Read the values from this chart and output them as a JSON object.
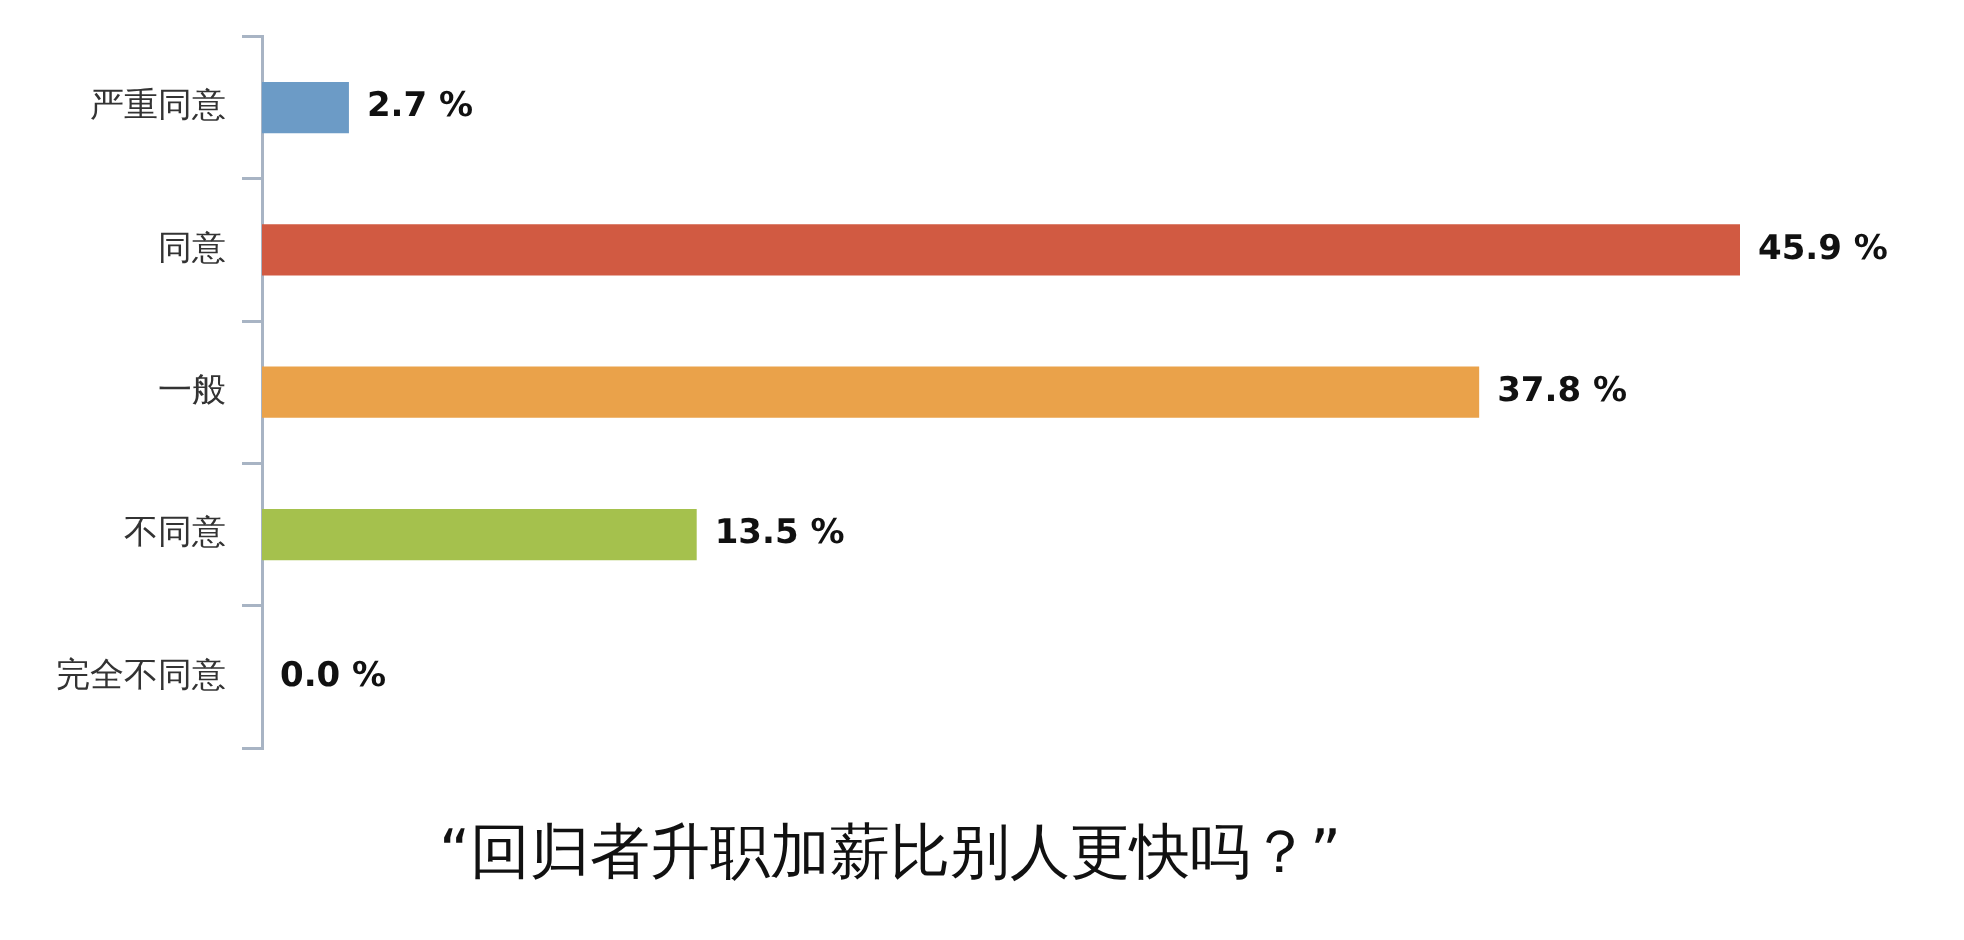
{
  "chart_data": {
    "type": "bar",
    "orientation": "horizontal",
    "title": "“回归者升职加薪比别人更快吗？”",
    "categories": [
      "严重同意",
      "同意",
      "一般",
      "不同意",
      "完全不同意"
    ],
    "values": [
      2.7,
      45.9,
      37.8,
      13.5,
      0.0
    ],
    "colors": [
      "#6c9bc6",
      "#d15a42",
      "#eaa24a",
      "#a5c14d",
      "#8bb04a"
    ],
    "value_labels": [
      "2.7 %",
      "45.9 %",
      "37.8 %",
      "13.5 %",
      "0.0 %"
    ],
    "grid": false,
    "legend": false
  }
}
